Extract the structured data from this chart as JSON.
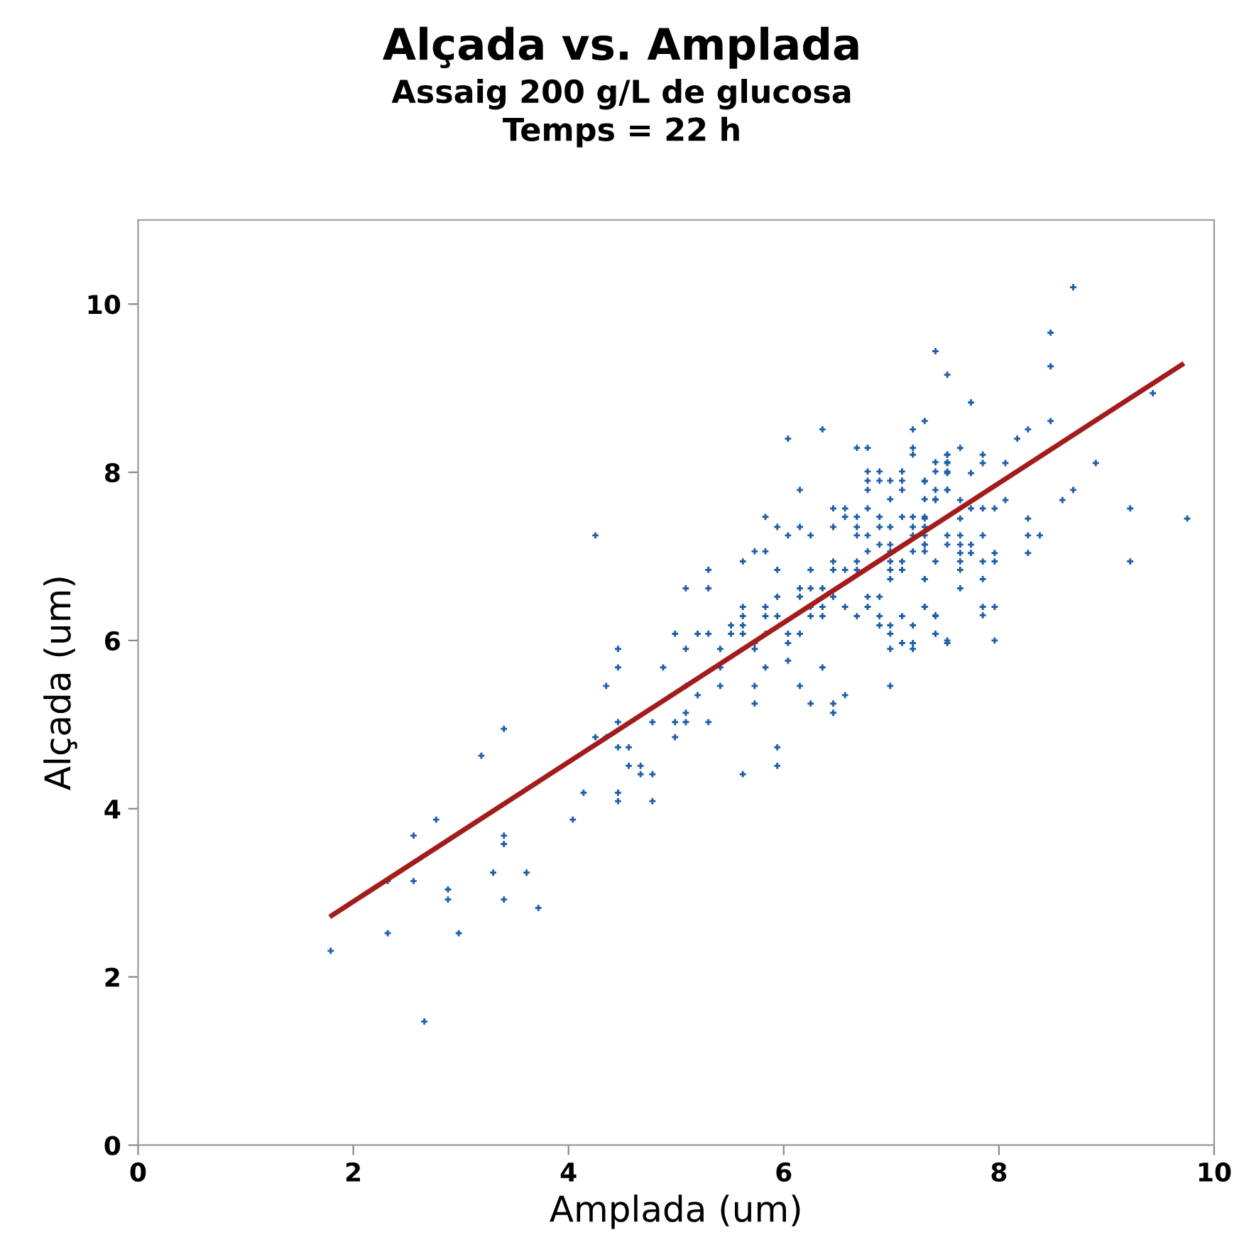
{
  "chart_data": {
    "type": "scatter",
    "title": "Alçada vs. Amplada",
    "subtitle": "Assaig 200 g/L de glucosa\nTemps = 22 h",
    "xlabel": "Amplada (um)",
    "ylabel": "Alçada (um)",
    "xlim": [
      0,
      10
    ],
    "ylim": [
      0,
      11
    ],
    "xticks": [
      0,
      2,
      4,
      6,
      8,
      10
    ],
    "yticks": [
      0,
      2,
      4,
      6,
      8,
      10
    ],
    "grid": false,
    "series": [
      {
        "color": "#1f5fa8",
        "marker": "cross",
        "x": [
          1.79,
          2.66,
          2.32,
          2.32,
          2.56,
          2.56,
          2.77,
          2.88,
          2.88,
          2.98,
          3.19,
          3.4,
          3.4,
          3.4,
          3.3,
          3.4,
          3.61,
          3.72,
          4.04,
          4.14,
          4.25,
          4.35,
          4.35,
          4.46,
          4.46,
          4.46,
          4.46,
          4.46,
          4.46,
          4.56,
          4.56,
          4.67,
          4.67,
          4.78,
          4.78,
          4.78,
          4.88,
          4.99,
          4.99,
          4.99,
          5.09,
          5.09,
          5.09,
          5.09,
          5.2,
          5.2,
          5.3,
          5.3,
          5.41,
          5.41,
          4.25,
          6.04,
          6.36,
          7.31,
          6.68,
          6.78,
          7.2,
          7.2,
          7.2,
          6.15,
          5.83,
          5.94,
          6.04,
          6.15,
          6.25,
          5.62,
          5.73,
          5.83,
          5.09,
          5.3,
          5.3,
          5.94,
          6.25,
          6.15,
          6.15,
          6.25,
          6.36,
          6.46,
          6.46,
          6.57,
          6.68,
          6.68,
          6.46,
          6.57,
          6.57,
          6.46,
          6.68,
          6.68,
          6.68,
          6.78,
          6.78,
          6.78,
          6.78,
          6.78,
          6.78,
          6.89,
          6.89,
          6.99,
          6.99,
          7.1,
          7.1,
          7.1,
          6.89,
          6.89,
          6.89,
          6.99,
          6.99,
          6.99,
          6.99,
          6.99,
          6.99,
          7.1,
          7.1,
          7.1,
          7.2,
          7.2,
          7.2,
          7.2,
          7.31,
          7.31,
          7.31,
          7.41,
          7.41,
          7.41,
          7.52,
          7.52,
          7.52,
          7.52,
          7.31,
          7.31,
          7.31,
          5.51,
          5.51,
          5.62,
          5.62,
          5.62,
          5.62,
          5.73,
          5.73,
          5.83,
          5.83,
          5.83,
          5.94,
          5.94,
          6.04,
          6.04,
          6.04,
          6.15,
          6.25,
          6.25,
          6.36,
          6.36,
          6.46,
          6.57,
          6.68,
          6.78,
          6.78,
          6.89,
          6.89,
          6.89,
          6.99,
          6.99,
          6.99,
          7.1,
          7.1,
          7.2,
          7.2,
          7.2,
          7.31,
          7.41,
          7.41,
          7.52,
          5.41,
          5.83,
          5.73,
          5.73,
          6.15,
          6.25,
          6.36,
          6.46,
          6.46,
          6.57,
          6.99,
          5.94,
          5.94,
          5.62,
          8.69,
          8.48,
          8.48,
          8.48,
          7.41,
          7.52,
          7.74,
          9.43,
          8.17,
          8.27,
          7.52,
          7.52,
          7.52,
          7.64,
          7.85,
          7.85,
          7.74,
          8.06,
          7.31,
          7.41,
          7.41,
          7.52,
          7.64,
          7.74,
          7.85,
          7.96,
          8.06,
          8.27,
          8.27,
          8.27,
          8.38,
          8.59,
          8.69,
          8.9,
          9.22,
          9.22,
          9.75,
          7.31,
          7.31,
          7.31,
          7.31,
          7.52,
          7.52,
          7.64,
          7.64,
          7.64,
          7.64,
          7.74,
          7.74,
          7.85,
          7.41,
          7.64,
          7.64,
          7.85,
          7.96,
          7.96,
          7.31,
          7.64,
          7.85,
          7.31,
          7.41,
          7.85,
          7.85,
          7.96,
          7.41,
          7.52,
          7.96
        ],
        "values": [
          2.31,
          1.47,
          2.52,
          3.14,
          3.68,
          3.14,
          3.87,
          3.04,
          2.92,
          2.52,
          4.63,
          4.95,
          3.68,
          3.58,
          3.24,
          2.92,
          3.24,
          2.82,
          3.87,
          4.19,
          4.85,
          4.85,
          5.46,
          5.9,
          5.68,
          5.03,
          4.73,
          4.19,
          4.09,
          4.73,
          4.51,
          4.51,
          4.41,
          4.41,
          4.09,
          5.03,
          5.68,
          6.08,
          5.03,
          4.85,
          5.9,
          5.46,
          5.14,
          5.03,
          5.35,
          6.08,
          6.08,
          5.03,
          5.9,
          5.46,
          7.25,
          8.4,
          8.51,
          8.61,
          8.29,
          8.29,
          8.51,
          8.29,
          8.21,
          7.79,
          7.47,
          7.35,
          7.25,
          7.35,
          7.25,
          6.94,
          7.06,
          7.06,
          6.62,
          6.84,
          6.62,
          6.84,
          6.84,
          6.62,
          6.52,
          6.62,
          6.62,
          6.94,
          6.84,
          6.84,
          6.94,
          6.84,
          7.57,
          7.57,
          7.47,
          7.35,
          7.47,
          7.35,
          7.25,
          7.57,
          7.25,
          7.06,
          8.01,
          7.9,
          7.79,
          8.01,
          7.9,
          7.9,
          7.68,
          8.01,
          7.9,
          7.79,
          7.47,
          7.35,
          7.14,
          7.35,
          7.14,
          7.06,
          6.94,
          6.84,
          6.73,
          7.47,
          6.94,
          6.84,
          7.47,
          7.35,
          7.25,
          7.06,
          7.9,
          7.68,
          7.47,
          8.12,
          8.01,
          7.68,
          8.21,
          8.12,
          8.01,
          7.79,
          7.14,
          7.06,
          6.73,
          6.18,
          6.08,
          6.4,
          6.29,
          6.18,
          6.08,
          5.97,
          5.9,
          6.4,
          6.29,
          6.08,
          6.52,
          6.29,
          6.08,
          5.97,
          5.76,
          6.08,
          6.4,
          6.29,
          6.4,
          6.29,
          6.52,
          6.4,
          6.29,
          6.52,
          6.4,
          6.52,
          6.29,
          6.18,
          6.18,
          6.08,
          5.9,
          6.29,
          5.97,
          6.18,
          5.97,
          5.9,
          6.4,
          6.29,
          6.08,
          5.97,
          5.68,
          5.68,
          5.46,
          5.25,
          5.46,
          5.25,
          5.68,
          5.25,
          5.14,
          5.35,
          5.46,
          4.73,
          4.51,
          4.41,
          10.2,
          9.66,
          9.26,
          8.61,
          9.44,
          9.16,
          8.83,
          8.94,
          8.4,
          8.51,
          8.21,
          8.11,
          7.99,
          8.29,
          8.21,
          8.11,
          7.99,
          8.11,
          7.89,
          7.79,
          7.67,
          7.79,
          7.67,
          7.57,
          7.57,
          7.57,
          7.67,
          7.45,
          7.25,
          7.04,
          7.25,
          7.67,
          7.79,
          8.11,
          7.57,
          6.94,
          7.45,
          7.45,
          7.35,
          7.25,
          7.14,
          7.25,
          7.14,
          7.45,
          7.25,
          7.14,
          7.04,
          7.14,
          7.04,
          7.25,
          6.94,
          6.94,
          6.84,
          6.94,
          7.04,
          6.94,
          6.73,
          6.62,
          6.73,
          6.4,
          6.3,
          6.4,
          6.3,
          6.4,
          6.08,
          6.0,
          6.0
        ]
      },
      {
        "type": "line",
        "marker": "none",
        "color": "#a31b1b",
        "x": [
          1.8,
          9.7
        ],
        "values": [
          2.73,
          9.28
        ]
      }
    ]
  }
}
